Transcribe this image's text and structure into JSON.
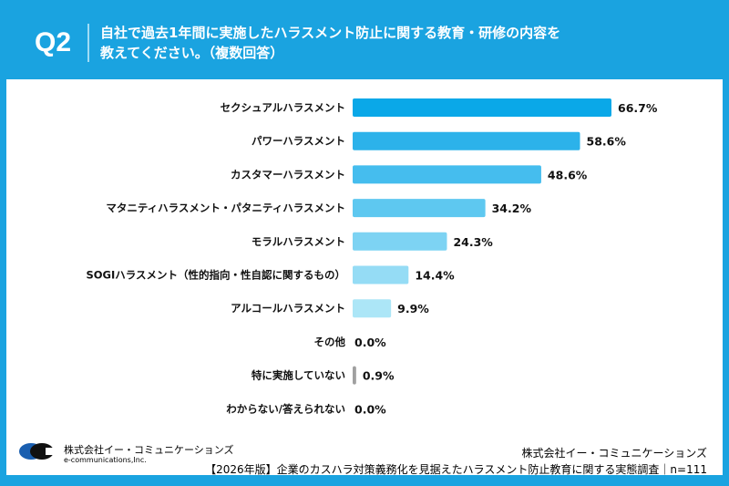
{
  "header": {
    "q": "Q2",
    "title_line1": "自社で過去1年間に実施したハラスメント防止に関する教育・研修の内容を",
    "title_line2": "教えてください。（複数回答）"
  },
  "footer": {
    "logo_jp": "株式会社イー・コミュニケーションズ",
    "logo_en": "e-communications,Inc.",
    "company": "株式会社イー・コミュニケーションズ",
    "survey": "【2026年版】企業のカスハラ対策義務化を見据えたハラスメント防止教育に関する実態調査｜n=111"
  },
  "chart_data": {
    "type": "bar",
    "orientation": "horizontal",
    "unit": "%",
    "categories": [
      "セクシュアルハラスメント",
      "パワーハラスメント",
      "カスタマーハラスメント",
      "マタニティハラスメント・パタニティハラスメント",
      "モラルハラスメント",
      "SOGIハラスメント（性的指向・性自認に関するもの）",
      "アルコールハラスメント",
      "その他",
      "特に実施していない",
      "わからない/答えられない"
    ],
    "values": [
      66.7,
      58.6,
      48.6,
      34.2,
      24.3,
      14.4,
      9.9,
      0.0,
      0.9,
      0.0
    ],
    "labels": [
      "66.7%",
      "58.6%",
      "48.6%",
      "34.2%",
      "24.3%",
      "14.4%",
      "9.9%",
      "0.0%",
      "0.9%",
      "0.0%"
    ],
    "colors": [
      "#0aa8e8",
      "#2cb2ea",
      "#45bdee",
      "#5ec8f0",
      "#7dd3f3",
      "#95dcf5",
      "#ace6f7",
      "#ace6f7",
      "#a0a0a0",
      "#a0a0a0"
    ],
    "grid": false
  }
}
